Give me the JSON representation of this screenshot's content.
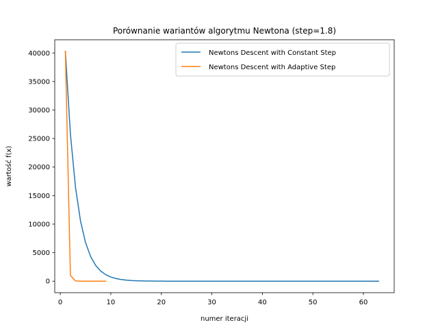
{
  "chart_data": {
    "type": "line",
    "title": "Porównanie wariantów algorytmu Newtona (step=1.8)",
    "xlabel": "numer iteracji",
    "ylabel": "wartość f(x)",
    "xlim": [
      -1.1,
      66.1
    ],
    "ylim": [
      -2015,
      42315
    ],
    "xticks": [
      0,
      10,
      20,
      30,
      40,
      50,
      60
    ],
    "yticks": [
      0,
      5000,
      10000,
      15000,
      20000,
      25000,
      30000,
      35000,
      40000
    ],
    "legend_position": "top-right",
    "grid": false,
    "series": [
      {
        "name": "Newtons Descent with Constant Step",
        "color": "#1f77b4",
        "x": [
          1,
          2,
          3,
          4,
          5,
          6,
          7,
          8,
          9,
          10,
          11,
          12,
          13,
          14,
          15,
          16,
          17,
          18,
          19,
          20,
          21,
          22,
          23,
          24,
          25,
          26,
          27,
          28,
          29,
          30,
          31,
          32,
          33,
          34,
          35,
          36,
          37,
          38,
          39,
          40,
          41,
          42,
          43,
          44,
          45,
          46,
          47,
          48,
          49,
          50,
          51,
          52,
          53,
          54,
          55,
          56,
          57,
          58,
          59,
          60,
          61,
          62,
          63
        ],
        "y": [
          40300,
          25800,
          16500,
          10550,
          6750,
          4320,
          2760,
          1770,
          1130,
          725,
          464,
          297,
          190,
          122,
          78,
          50,
          32,
          20,
          13,
          8,
          5,
          3,
          2,
          1,
          1,
          1,
          0,
          0,
          0,
          0,
          0,
          0,
          0,
          0,
          0,
          0,
          0,
          0,
          0,
          0,
          0,
          0,
          0,
          0,
          0,
          0,
          0,
          0,
          0,
          0,
          0,
          0,
          0,
          0,
          0,
          0,
          0,
          0,
          0,
          0,
          0,
          0,
          0
        ]
      },
      {
        "name": "Newtons Descent with Adaptive Step",
        "color": "#ff7f0e",
        "x": [
          1,
          2,
          3,
          4,
          5,
          6,
          7,
          8,
          9
        ],
        "y": [
          40300,
          1000,
          40,
          2,
          0,
          0,
          0,
          0,
          0
        ]
      }
    ]
  }
}
